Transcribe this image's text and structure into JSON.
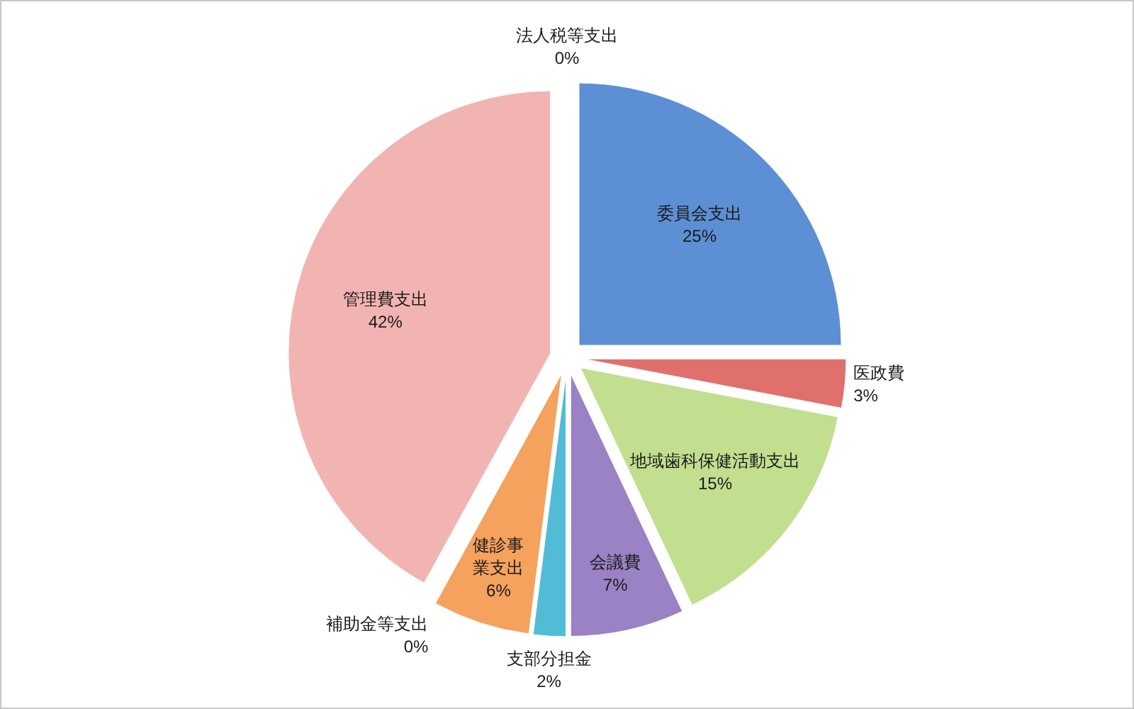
{
  "chart_data": {
    "type": "pie",
    "categories": [
      "法人税等支出",
      "委員会支出",
      "医政費",
      "地域歯科保健活動支出",
      "会議費",
      "支部分担金",
      "健診事業支出",
      "補助金等支出",
      "管理費支出"
    ],
    "values": [
      0,
      25,
      3,
      15,
      7,
      2,
      6,
      0,
      42
    ],
    "colors": [
      "#b8d98c",
      "#5d8fd4",
      "#e0706c",
      "#c2de8f",
      "#9a82c4",
      "#52bcd6",
      "#f5a25e",
      "#95add6",
      "#f2b4b2"
    ],
    "value_labels": [
      "0%",
      "25%",
      "3%",
      "15%",
      "7%",
      "2%",
      "6%",
      "0%",
      "42%"
    ]
  }
}
